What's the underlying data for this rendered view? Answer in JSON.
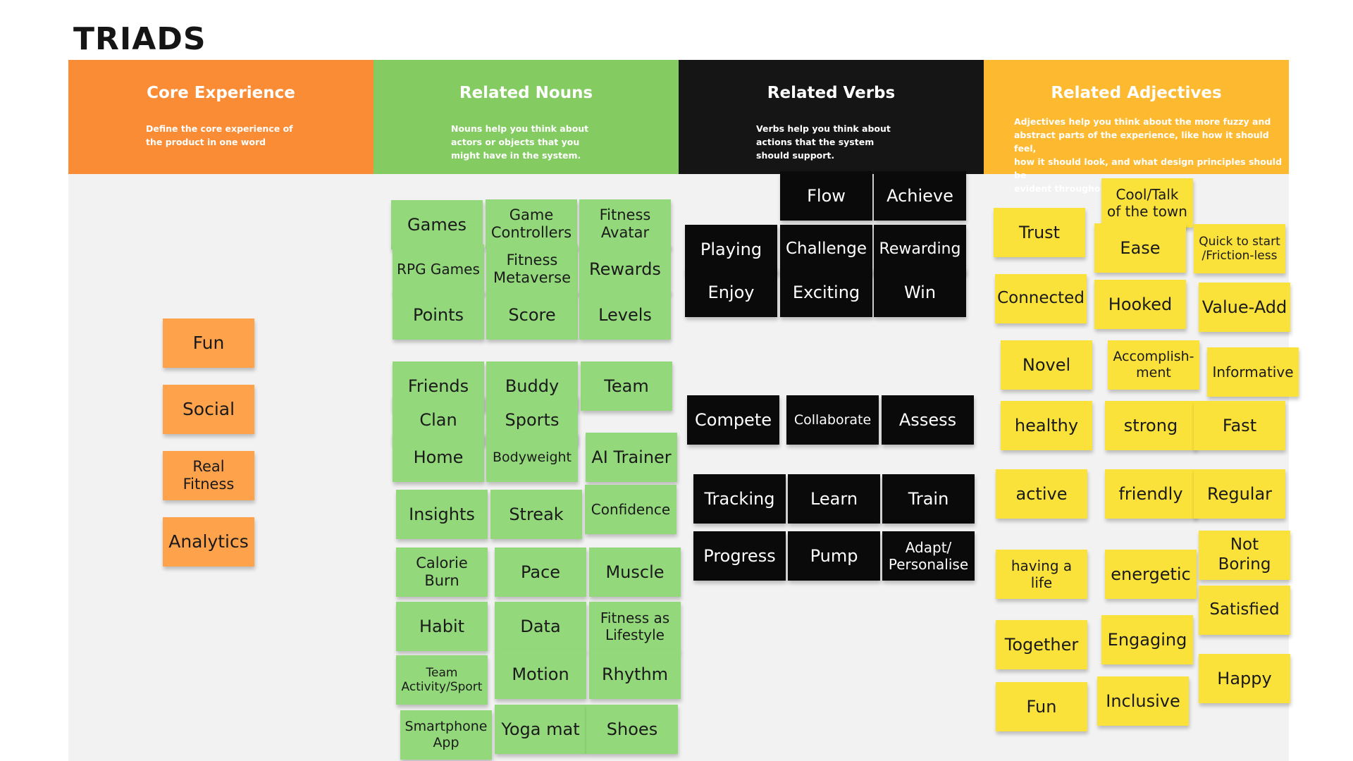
{
  "board": {
    "title": "TRIADS",
    "colors": {
      "core": "#fb8c36",
      "nouns": "#84cc62",
      "verbs": "#151515",
      "adjectives": "#fdba31",
      "sticky_orange": "#ffa24c",
      "sticky_green": "#93d97b",
      "sticky_black": "#0a0a0a",
      "sticky_yellow": "#fbe23a"
    },
    "columns": [
      {
        "key": "core",
        "title": "Core Experience",
        "description": "Define the core experience of\nthe product in one word"
      },
      {
        "key": "nouns",
        "title": "Related Nouns",
        "description": "Nouns help you think about\nactors or objects that you\nmight have in the system."
      },
      {
        "key": "verbs",
        "title": "Related Verbs",
        "description": "Verbs help you think about\nactions that the system\nshould support."
      },
      {
        "key": "adjectives",
        "title": "Related Adjectives",
        "description": "Adjectives help you think about the more fuzzy and\nabstract parts of the experience, like how it should feel,\nhow it should look, and what design principles should be\nevident throughout."
      }
    ],
    "core_stickies": [
      "Fun",
      "Social",
      "Real\nFitness",
      "Analytics"
    ],
    "noun_stickies": [
      "Games",
      "Game\nControllers",
      "Fitness\nAvatar",
      "RPG Games",
      "Fitness\nMetaverse",
      "Rewards",
      "Points",
      "Score",
      "Levels",
      "Friends",
      "Buddy",
      "Team",
      "Clan",
      "Sports",
      "Home",
      "Bodyweight",
      "AI Trainer",
      "Insights",
      "Streak",
      "Confidence",
      "Calorie\nBurn",
      "Pace",
      "Muscle",
      "Habit",
      "Data",
      "Fitness as\nLifestyle",
      "Team\nActivity/Sport",
      "Motion",
      "Rhythm",
      "Smartphone\nApp",
      "Yoga mat",
      "Shoes"
    ],
    "verb_stickies": [
      "Flow",
      "Achieve",
      "Playing",
      "Challenge",
      "Rewarding",
      "Enjoy",
      "Exciting",
      "Win",
      "Compete",
      "Collaborate",
      "Assess",
      "Tracking",
      "Learn",
      "Train",
      "Progress",
      "Pump",
      "Adapt/\nPersonalise"
    ],
    "adjective_stickies": [
      "Cool/Talk\nof the town",
      "Trust",
      "Ease",
      "Quick to start\n/Friction-less",
      "Connected",
      "Hooked",
      "Value-Add",
      "Novel",
      "Accomplish-\nment",
      "Informative",
      "healthy",
      "strong",
      "Fast",
      "active",
      "friendly",
      "Regular",
      "having a\nlife",
      "energetic",
      "Not Boring",
      "Satisfied",
      "Together",
      "Engaging",
      "Happy",
      "Fun",
      "Inclusive"
    ]
  }
}
